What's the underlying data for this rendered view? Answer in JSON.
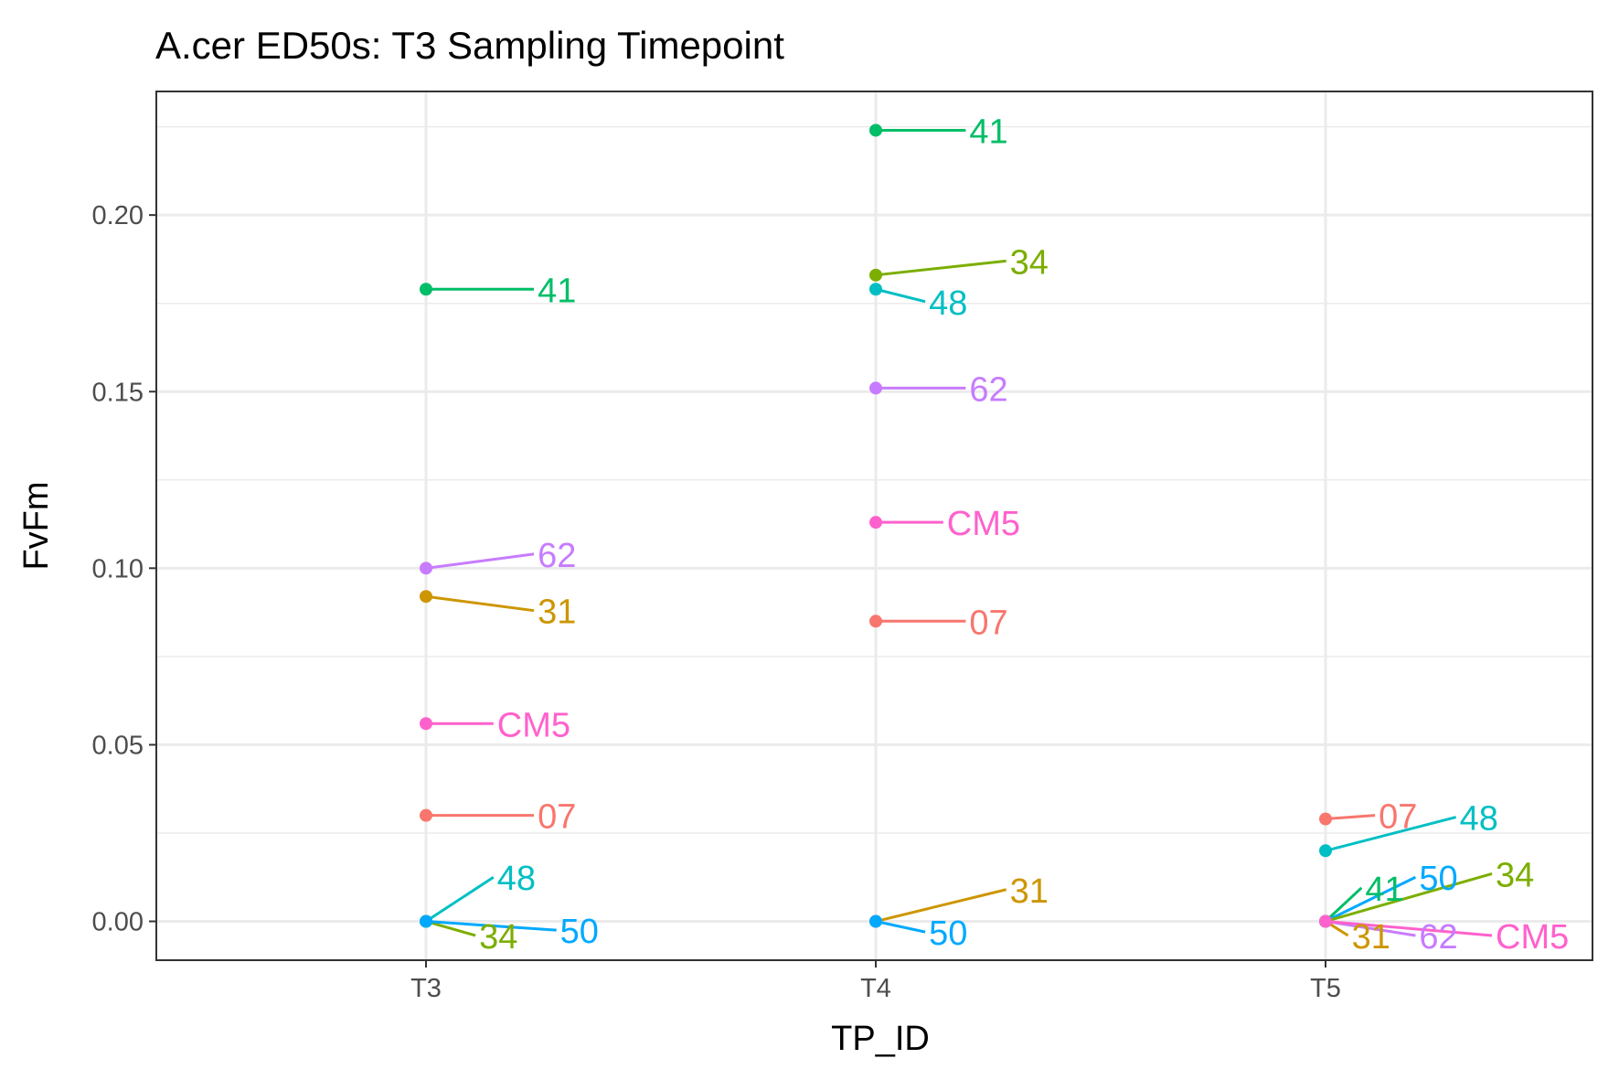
{
  "chart_data": {
    "type": "scatter",
    "title": "A.cer ED50s: T3 Sampling Timepoint",
    "xlabel": "TP_ID",
    "ylabel": "FvFm",
    "categories": [
      "T3",
      "T4",
      "T5"
    ],
    "ylim": [
      -0.011,
      0.235
    ],
    "yticks": [
      0.0,
      0.05,
      0.1,
      0.15,
      0.2
    ],
    "ytick_labels": [
      "0.00",
      "0.05",
      "0.10",
      "0.15",
      "0.20"
    ],
    "grid": true,
    "legend": "none",
    "colors": {
      "07": "#F8766D",
      "31": "#CD9600",
      "34": "#7CAE00",
      "41": "#00BE67",
      "48": "#00BFC4",
      "50": "#00A9FF",
      "62": "#C77CFF",
      "CM5": "#FF61CC"
    },
    "points": [
      {
        "x": "T3",
        "y": 0.179,
        "label": "41",
        "label_x": 0.24,
        "label_y": 0.179
      },
      {
        "x": "T3",
        "y": 0.1,
        "label": "62",
        "label_x": 0.24,
        "label_y": 0.104
      },
      {
        "x": "T3",
        "y": 0.092,
        "label": "31",
        "label_x": 0.24,
        "label_y": 0.088
      },
      {
        "x": "T3",
        "y": 0.056,
        "label": "CM5",
        "label_x": 0.15,
        "label_y": 0.056
      },
      {
        "x": "T3",
        "y": 0.03,
        "label": "07",
        "label_x": 0.24,
        "label_y": 0.03
      },
      {
        "x": "T3",
        "y": 0.0,
        "label": "48",
        "label_x": 0.15,
        "label_y": 0.0125
      },
      {
        "x": "T3",
        "y": 0.0,
        "label": "34",
        "label_x": 0.11,
        "label_y": -0.004
      },
      {
        "x": "T3",
        "y": 0.0,
        "label": "50",
        "label_x": 0.29,
        "label_y": -0.0025
      },
      {
        "x": "T4",
        "y": 0.224,
        "label": "41",
        "label_x": 0.2,
        "label_y": 0.224
      },
      {
        "x": "T4",
        "y": 0.183,
        "label": "34",
        "label_x": 0.29,
        "label_y": 0.187
      },
      {
        "x": "T4",
        "y": 0.179,
        "label": "48",
        "label_x": 0.11,
        "label_y": 0.1755
      },
      {
        "x": "T4",
        "y": 0.151,
        "label": "62",
        "label_x": 0.2,
        "label_y": 0.151
      },
      {
        "x": "T4",
        "y": 0.113,
        "label": "CM5",
        "label_x": 0.15,
        "label_y": 0.113
      },
      {
        "x": "T4",
        "y": 0.085,
        "label": "07",
        "label_x": 0.2,
        "label_y": 0.085
      },
      {
        "x": "T4",
        "y": 0.0,
        "label": "31",
        "label_x": 0.29,
        "label_y": 0.009
      },
      {
        "x": "T4",
        "y": 0.0,
        "label": "50",
        "label_x": 0.11,
        "label_y": -0.003
      },
      {
        "x": "T5",
        "y": 0.029,
        "label": "07",
        "label_x": 0.11,
        "label_y": 0.03
      },
      {
        "x": "T5",
        "y": 0.02,
        "label": "48",
        "label_x": 0.29,
        "label_y": 0.0295
      },
      {
        "x": "T5",
        "y": 0.0,
        "label": "41",
        "label_x": 0.08,
        "label_y": 0.0095
      },
      {
        "x": "T5",
        "y": 0.0,
        "label": "50",
        "label_x": 0.2,
        "label_y": 0.0125
      },
      {
        "x": "T5",
        "y": 0.0,
        "label": "34",
        "label_x": 0.37,
        "label_y": 0.0135
      },
      {
        "x": "T5",
        "y": 0.0,
        "label": "31",
        "label_x": 0.05,
        "label_y": -0.004
      },
      {
        "x": "T5",
        "y": 0.0,
        "label": "62",
        "label_x": 0.2,
        "label_y": -0.004
      },
      {
        "x": "T5",
        "y": 0.0,
        "label": "CM5",
        "label_x": 0.37,
        "label_y": -0.004
      }
    ]
  }
}
